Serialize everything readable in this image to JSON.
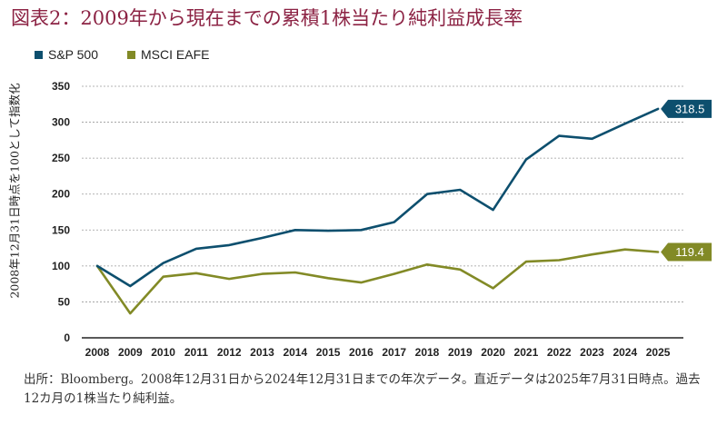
{
  "title": "図表2：2009年から現在までの累積1株当たり純利益成長率",
  "footnote": "出所：Bloomberg。2008年12月31日から2024年12月31日までの年次データ。直近データは2025年7月31日時点。過去12カ月の1株当たり純利益。",
  "colors": {
    "title": "#8c2344",
    "grid": "#9a9a9a",
    "axis": "#222222"
  },
  "chart_data": {
    "type": "line",
    "title": "図表2：2009年から現在までの累積1株当たり純利益成長率",
    "ylabel": "2008年12月31日時点を100として指数化",
    "xlabel": "",
    "x": [
      "2008",
      "2009",
      "2010",
      "2011",
      "2012",
      "2013",
      "2014",
      "2015",
      "2016",
      "2017",
      "2018",
      "2019",
      "2020",
      "2021",
      "2022",
      "2023",
      "2024",
      "2025"
    ],
    "ylim": [
      0,
      350
    ],
    "yticks": [
      0,
      50,
      100,
      150,
      200,
      250,
      300,
      350
    ],
    "grid": "horizontal dashed",
    "legend": "top-left",
    "series": [
      {
        "name": "S&P 500",
        "color": "#0d4f6e",
        "values": [
          100,
          72,
          104,
          124,
          129,
          139,
          150,
          149,
          150,
          161,
          200,
          206,
          178,
          248,
          281,
          277,
          298,
          318.5
        ],
        "end_label": "318.5"
      },
      {
        "name": "MSCI EAFE",
        "color": "#828a26",
        "values": [
          100,
          34,
          85,
          90,
          82,
          89,
          91,
          83,
          77,
          89,
          102,
          95,
          69,
          106,
          108,
          116,
          123,
          119.4
        ],
        "end_label": "119.4"
      }
    ]
  }
}
